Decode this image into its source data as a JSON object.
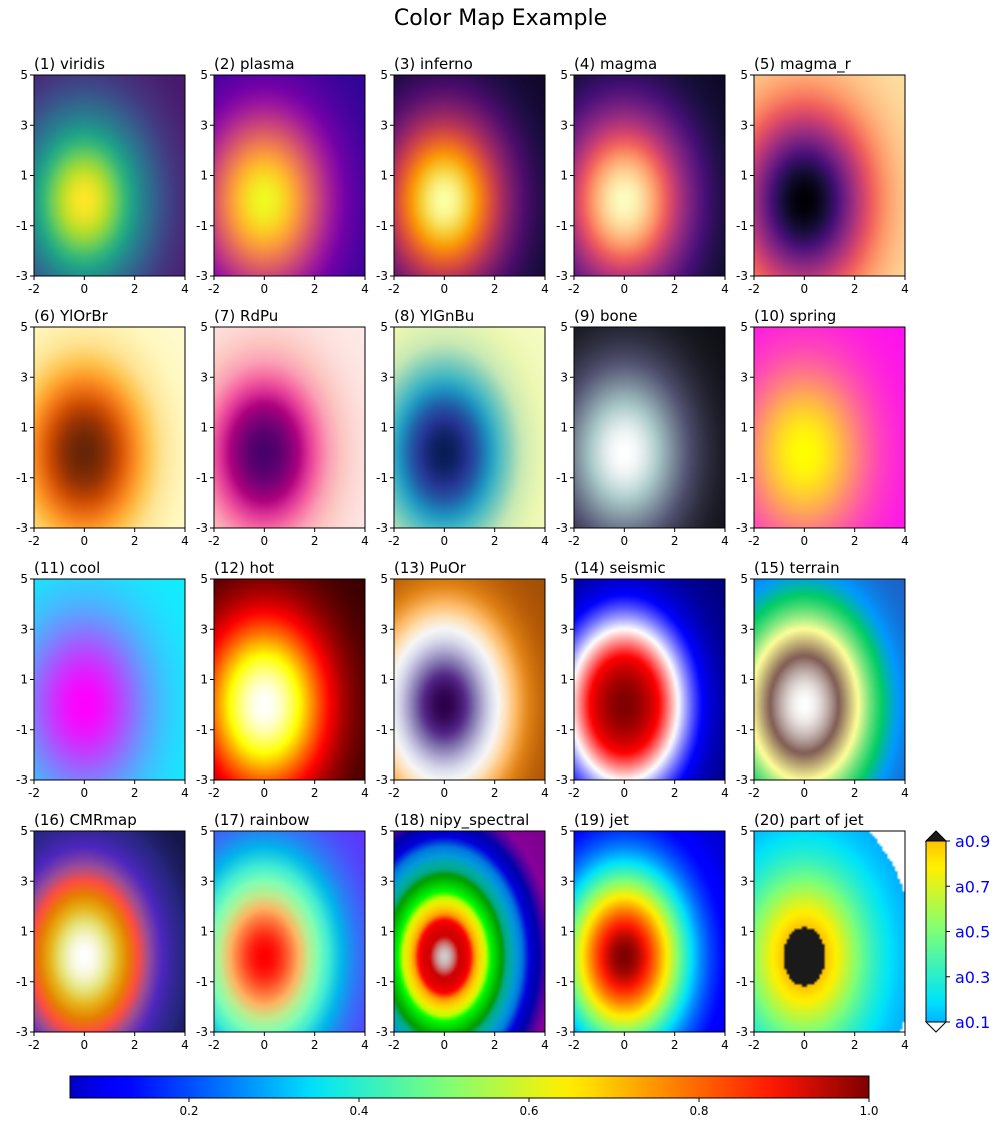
{
  "title": "Color Map Example",
  "chart_data": {
    "type": "heatmap",
    "x_range": [
      -2,
      4
    ],
    "y_range": [
      -3,
      5
    ],
    "x_ticks": [
      "-2",
      "0",
      "2",
      "4"
    ],
    "y_ticks": [
      "5",
      "3",
      "1",
      "-1",
      "-3"
    ],
    "center": [
      0,
      0
    ],
    "panels": [
      {
        "label": "(1) viridis",
        "cmap": "viridis"
      },
      {
        "label": "(2) plasma",
        "cmap": "plasma"
      },
      {
        "label": "(3) inferno",
        "cmap": "inferno"
      },
      {
        "label": "(4) magma",
        "cmap": "magma"
      },
      {
        "label": "(5) magma_r",
        "cmap": "magma_r"
      },
      {
        "label": "(6) YlOrBr",
        "cmap": "YlOrBr"
      },
      {
        "label": "(7) RdPu",
        "cmap": "RdPu"
      },
      {
        "label": "(8) YlGnBu",
        "cmap": "YlGnBu"
      },
      {
        "label": "(9) bone",
        "cmap": "bone"
      },
      {
        "label": "(10) spring",
        "cmap": "spring"
      },
      {
        "label": "(11) cool",
        "cmap": "cool"
      },
      {
        "label": "(12) hot",
        "cmap": "hot"
      },
      {
        "label": "(13) PuOr",
        "cmap": "PuOr"
      },
      {
        "label": "(14) seismic",
        "cmap": "seismic"
      },
      {
        "label": "(15) terrain",
        "cmap": "terrain"
      },
      {
        "label": "(16) CMRmap",
        "cmap": "CMRmap"
      },
      {
        "label": "(17) rainbow",
        "cmap": "rainbow"
      },
      {
        "label": "(18) nipy_spectral",
        "cmap": "nipy_spectral"
      },
      {
        "label": "(19) jet",
        "cmap": "jet"
      },
      {
        "label": "(20) part of jet",
        "cmap": "partjet"
      }
    ],
    "colorbar_main": {
      "cmap": "jet",
      "range": [
        0.06,
        1.0
      ],
      "ticks": [
        0.2,
        0.4,
        0.6,
        0.8,
        1.0
      ],
      "tick_labels": [
        "0.2",
        "0.4",
        "0.6",
        "0.8",
        "1.0"
      ]
    },
    "colorbar_side": {
      "cmap": "partjet",
      "range": [
        0.1,
        0.9
      ],
      "ticks": [
        0.1,
        0.3,
        0.5,
        0.7,
        0.9
      ],
      "tick_labels": [
        "a0.1",
        "a0.3",
        "a0.5",
        "a0.7",
        "a0.9"
      ],
      "tick_label_color": "#0000ff",
      "over_color": "#1a1a1a",
      "under_color": "#ffffff"
    }
  }
}
